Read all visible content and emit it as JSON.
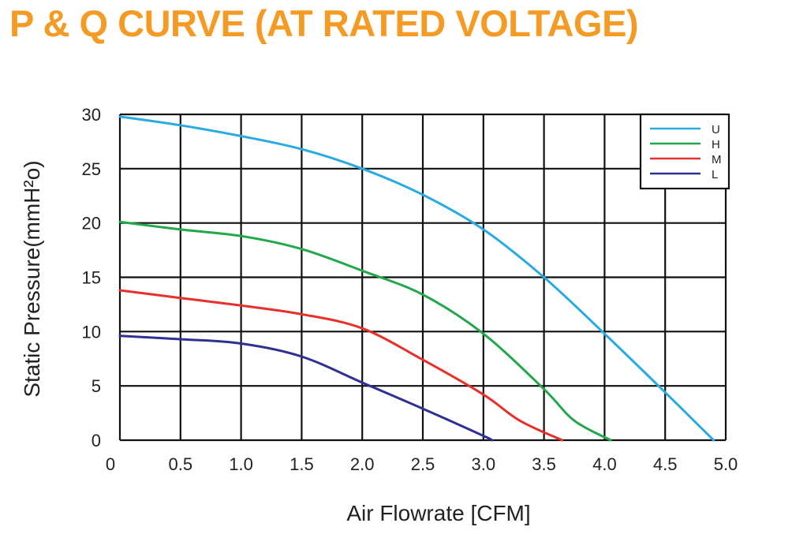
{
  "title": "P & Q CURVE (AT RATED VOLTAGE)",
  "title_color": "#F59A23",
  "chart_data": {
    "type": "line",
    "xlabel": "Air  Flowrate   [CFM]",
    "ylabel": "Static Pressure(mmH²o)",
    "xlim": [
      0,
      5.0
    ],
    "ylim": [
      0,
      30
    ],
    "x_tick_labels": [
      "0",
      "0.5",
      "1.0",
      "1.5",
      "2.0",
      "2.5",
      "3.0",
      "3.5",
      "4.0",
      "4.5",
      "5.0"
    ],
    "y_tick_labels": [
      "0",
      "5",
      "10",
      "15",
      "20",
      "25",
      "30"
    ],
    "grid": true,
    "legend_position": "top-right",
    "series": [
      {
        "name": "U",
        "color": "#29ABE2",
        "x": [
          0.0,
          0.5,
          1.0,
          1.5,
          2.0,
          2.5,
          3.0,
          3.5,
          4.0,
          4.5,
          4.9
        ],
        "y": [
          29.8,
          29.0,
          28.0,
          26.8,
          25.0,
          22.6,
          19.4,
          15.0,
          9.8,
          4.4,
          0.0
        ]
      },
      {
        "name": "H",
        "color": "#22A84A",
        "x": [
          0.0,
          0.5,
          1.0,
          1.5,
          2.0,
          2.5,
          3.0,
          3.5,
          3.75,
          4.05
        ],
        "y": [
          20.1,
          19.4,
          18.8,
          17.6,
          15.6,
          13.4,
          9.8,
          4.7,
          1.8,
          0.0
        ]
      },
      {
        "name": "M",
        "color": "#E8302A",
        "x": [
          0.0,
          0.5,
          1.0,
          1.5,
          2.0,
          2.5,
          3.0,
          3.3,
          3.65
        ],
        "y": [
          13.8,
          13.1,
          12.4,
          11.6,
          10.3,
          7.4,
          4.2,
          1.8,
          0.0
        ]
      },
      {
        "name": "L",
        "color": "#2E3192",
        "x": [
          0.0,
          0.5,
          1.0,
          1.5,
          2.0,
          2.5,
          3.0,
          3.07
        ],
        "y": [
          9.6,
          9.3,
          8.9,
          7.7,
          5.3,
          2.9,
          0.4,
          0.0
        ]
      }
    ]
  }
}
